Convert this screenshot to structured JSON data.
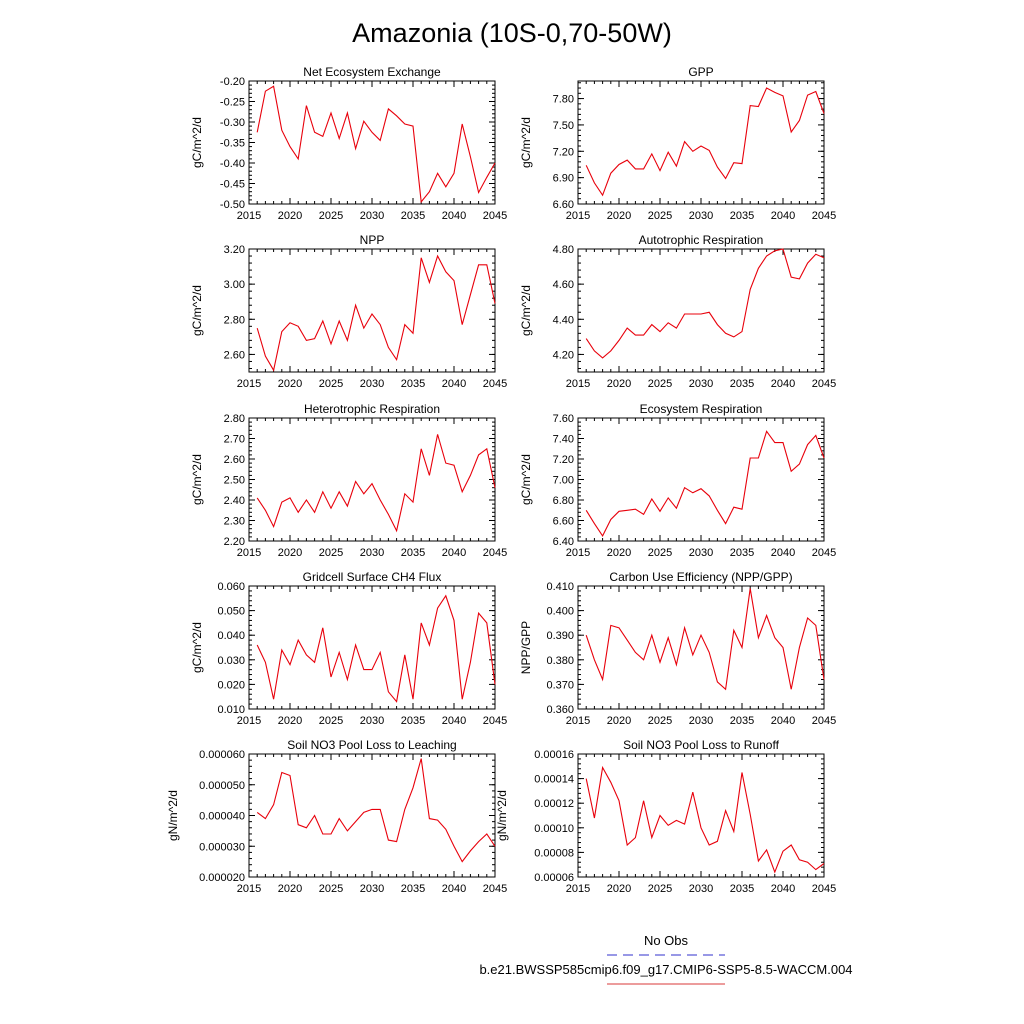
{
  "title": "Amazonia (10S-0,70-50W)",
  "legend": {
    "entries": [
      {
        "label": "No Obs",
        "color": "#5b5bd6",
        "style": "dashed"
      },
      {
        "label": "b.e21.BWSSP585cmip6.f09_g17.CMIP6-SSP5-8.5-WACCM.004",
        "color": "#e06060",
        "style": "solid"
      }
    ]
  },
  "line_color": "#e8000b",
  "chart_data": [
    {
      "type": "line",
      "title": "Net Ecosystem Exchange",
      "ylabel": "gC/m^2/d",
      "xlim": [
        2015,
        2045
      ],
      "ylim": [
        -0.5,
        -0.2
      ],
      "xticks": [
        "2015",
        "2020",
        "2025",
        "2030",
        "2035",
        "2040",
        "2045"
      ],
      "yticks": [
        "-0.50",
        "-0.45",
        "-0.40",
        "-0.35",
        "-0.30",
        "-0.25",
        "-0.20"
      ],
      "x": [
        2016,
        2017,
        2018,
        2019,
        2020,
        2021,
        2022,
        2023,
        2024,
        2025,
        2026,
        2027,
        2028,
        2029,
        2030,
        2031,
        2032,
        2033,
        2034,
        2035,
        2036,
        2037,
        2038,
        2039,
        2040,
        2041,
        2042,
        2043,
        2044,
        2045
      ],
      "values": [
        -0.325,
        -0.225,
        -0.213,
        -0.32,
        -0.36,
        -0.39,
        -0.26,
        -0.325,
        -0.335,
        -0.278,
        -0.34,
        -0.278,
        -0.365,
        -0.298,
        -0.325,
        -0.345,
        -0.268,
        -0.285,
        -0.305,
        -0.31,
        -0.495,
        -0.47,
        -0.425,
        -0.458,
        -0.425,
        -0.305,
        -0.385,
        -0.472,
        -0.435,
        -0.4
      ]
    },
    {
      "type": "line",
      "title": "GPP",
      "ylabel": "gC/m^2/d",
      "xlim": [
        2015,
        2045
      ],
      "ylim": [
        6.6,
        8.0
      ],
      "xticks": [
        "2015",
        "2020",
        "2025",
        "2030",
        "2035",
        "2040",
        "2045"
      ],
      "yticks": [
        "6.60",
        "6.90",
        "7.20",
        "7.50",
        "7.80"
      ],
      "x": [
        2016,
        2017,
        2018,
        2019,
        2020,
        2021,
        2022,
        2023,
        2024,
        2025,
        2026,
        2027,
        2028,
        2029,
        2030,
        2031,
        2032,
        2033,
        2034,
        2035,
        2036,
        2037,
        2038,
        2039,
        2040,
        2041,
        2042,
        2043,
        2044,
        2045
      ],
      "values": [
        7.04,
        6.84,
        6.7,
        6.95,
        7.05,
        7.1,
        7.0,
        7.0,
        7.17,
        6.98,
        7.19,
        7.03,
        7.31,
        7.2,
        7.26,
        7.21,
        7.02,
        6.89,
        7.07,
        7.06,
        7.72,
        7.71,
        7.92,
        7.87,
        7.83,
        7.42,
        7.55,
        7.84,
        7.88,
        7.63
      ]
    },
    {
      "type": "line",
      "title": "NPP",
      "ylabel": "gC/m^2/d",
      "xlim": [
        2015,
        2045
      ],
      "ylim": [
        2.5,
        3.2
      ],
      "xticks": [
        "2015",
        "2020",
        "2025",
        "2030",
        "2035",
        "2040",
        "2045"
      ],
      "yticks": [
        "2.60",
        "2.80",
        "3.00",
        "3.20"
      ],
      "x": [
        2016,
        2017,
        2018,
        2019,
        2020,
        2021,
        2022,
        2023,
        2024,
        2025,
        2026,
        2027,
        2028,
        2029,
        2030,
        2031,
        2032,
        2033,
        2034,
        2035,
        2036,
        2037,
        2038,
        2039,
        2040,
        2041,
        2042,
        2043,
        2044,
        2045
      ],
      "values": [
        2.75,
        2.59,
        2.51,
        2.73,
        2.78,
        2.76,
        2.68,
        2.69,
        2.79,
        2.66,
        2.79,
        2.68,
        2.88,
        2.75,
        2.83,
        2.77,
        2.64,
        2.57,
        2.77,
        2.72,
        3.15,
        3.01,
        3.16,
        3.07,
        3.02,
        2.77,
        2.94,
        3.11,
        3.11,
        2.89
      ]
    },
    {
      "type": "line",
      "title": "Autotrophic Respiration",
      "ylabel": "gC/m^2/d",
      "xlim": [
        2015,
        2045
      ],
      "ylim": [
        4.1,
        4.8
      ],
      "xticks": [
        "2015",
        "2020",
        "2025",
        "2030",
        "2035",
        "2040",
        "2045"
      ],
      "yticks": [
        "4.20",
        "4.40",
        "4.60",
        "4.80"
      ],
      "x": [
        2016,
        2017,
        2018,
        2019,
        2020,
        2021,
        2022,
        2023,
        2024,
        2025,
        2026,
        2027,
        2028,
        2029,
        2030,
        2031,
        2032,
        2033,
        2034,
        2035,
        2036,
        2037,
        2038,
        2039,
        2040,
        2041,
        2042,
        2043,
        2044,
        2045
      ],
      "values": [
        4.29,
        4.22,
        4.18,
        4.22,
        4.28,
        4.35,
        4.31,
        4.31,
        4.37,
        4.33,
        4.38,
        4.35,
        4.43,
        4.43,
        4.43,
        4.44,
        4.37,
        4.32,
        4.3,
        4.33,
        4.57,
        4.69,
        4.76,
        4.79,
        4.8,
        4.64,
        4.63,
        4.72,
        4.77,
        4.75
      ]
    },
    {
      "type": "line",
      "title": "Heterotrophic Respiration",
      "ylabel": "gC/m^2/d",
      "xlim": [
        2015,
        2045
      ],
      "ylim": [
        2.2,
        2.8
      ],
      "xticks": [
        "2015",
        "2020",
        "2025",
        "2030",
        "2035",
        "2040",
        "2045"
      ],
      "yticks": [
        "2.20",
        "2.30",
        "2.40",
        "2.50",
        "2.60",
        "2.70",
        "2.80"
      ],
      "x": [
        2016,
        2017,
        2018,
        2019,
        2020,
        2021,
        2022,
        2023,
        2024,
        2025,
        2026,
        2027,
        2028,
        2029,
        2030,
        2031,
        2032,
        2033,
        2034,
        2035,
        2036,
        2037,
        2038,
        2039,
        2040,
        2041,
        2042,
        2043,
        2044,
        2045
      ],
      "values": [
        2.41,
        2.35,
        2.27,
        2.39,
        2.41,
        2.34,
        2.4,
        2.34,
        2.44,
        2.36,
        2.44,
        2.37,
        2.49,
        2.43,
        2.48,
        2.4,
        2.33,
        2.25,
        2.43,
        2.39,
        2.65,
        2.52,
        2.72,
        2.58,
        2.57,
        2.44,
        2.52,
        2.62,
        2.65,
        2.46
      ]
    },
    {
      "type": "line",
      "title": "Ecosystem Respiration",
      "ylabel": "gC/m^2/d",
      "xlim": [
        2015,
        2045
      ],
      "ylim": [
        6.4,
        7.6
      ],
      "xticks": [
        "2015",
        "2020",
        "2025",
        "2030",
        "2035",
        "2040",
        "2045"
      ],
      "yticks": [
        "6.40",
        "6.60",
        "6.80",
        "7.00",
        "7.20",
        "7.40",
        "7.60"
      ],
      "x": [
        2016,
        2017,
        2018,
        2019,
        2020,
        2021,
        2022,
        2023,
        2024,
        2025,
        2026,
        2027,
        2028,
        2029,
        2030,
        2031,
        2032,
        2033,
        2034,
        2035,
        2036,
        2037,
        2038,
        2039,
        2040,
        2041,
        2042,
        2043,
        2044,
        2045
      ],
      "values": [
        6.7,
        6.57,
        6.45,
        6.61,
        6.69,
        6.7,
        6.71,
        6.66,
        6.81,
        6.69,
        6.82,
        6.72,
        6.92,
        6.87,
        6.91,
        6.84,
        6.7,
        6.57,
        6.73,
        6.71,
        7.21,
        7.21,
        7.47,
        7.36,
        7.36,
        7.08,
        7.15,
        7.34,
        7.43,
        7.21
      ]
    },
    {
      "type": "line",
      "title": "Gridcell Surface CH4 Flux",
      "ylabel": "gC/m^2/d",
      "xlim": [
        2015,
        2045
      ],
      "ylim": [
        0.01,
        0.06
      ],
      "xticks": [
        "2015",
        "2020",
        "2025",
        "2030",
        "2035",
        "2040",
        "2045"
      ],
      "yticks": [
        "0.010",
        "0.020",
        "0.030",
        "0.040",
        "0.050",
        "0.060"
      ],
      "x": [
        2016,
        2017,
        2018,
        2019,
        2020,
        2021,
        2022,
        2023,
        2024,
        2025,
        2026,
        2027,
        2028,
        2029,
        2030,
        2031,
        2032,
        2033,
        2034,
        2035,
        2036,
        2037,
        2038,
        2039,
        2040,
        2041,
        2042,
        2043,
        2044,
        2045
      ],
      "values": [
        0.036,
        0.029,
        0.014,
        0.034,
        0.028,
        0.038,
        0.032,
        0.029,
        0.043,
        0.023,
        0.033,
        0.022,
        0.036,
        0.026,
        0.026,
        0.033,
        0.017,
        0.013,
        0.032,
        0.014,
        0.045,
        0.036,
        0.051,
        0.056,
        0.046,
        0.014,
        0.029,
        0.049,
        0.045,
        0.02
      ]
    },
    {
      "type": "line",
      "title": "Carbon Use Efficiency (NPP/GPP)",
      "ylabel": "NPP/GPP",
      "xlim": [
        2015,
        2045
      ],
      "ylim": [
        0.36,
        0.41
      ],
      "xticks": [
        "2015",
        "2020",
        "2025",
        "2030",
        "2035",
        "2040",
        "2045"
      ],
      "yticks": [
        "0.360",
        "0.370",
        "0.380",
        "0.390",
        "0.400",
        "0.410"
      ],
      "x": [
        2016,
        2017,
        2018,
        2019,
        2020,
        2021,
        2022,
        2023,
        2024,
        2025,
        2026,
        2027,
        2028,
        2029,
        2030,
        2031,
        2032,
        2033,
        2034,
        2035,
        2036,
        2037,
        2038,
        2039,
        2040,
        2041,
        2042,
        2043,
        2044,
        2045
      ],
      "values": [
        0.39,
        0.38,
        0.372,
        0.394,
        0.393,
        0.388,
        0.383,
        0.38,
        0.39,
        0.379,
        0.389,
        0.378,
        0.393,
        0.382,
        0.39,
        0.383,
        0.371,
        0.368,
        0.392,
        0.385,
        0.409,
        0.389,
        0.398,
        0.389,
        0.385,
        0.368,
        0.385,
        0.397,
        0.394,
        0.372
      ]
    },
    {
      "type": "line",
      "title": "Soil NO3 Pool Loss to Leaching",
      "ylabel": "gN/m^2/d",
      "xlim": [
        2015,
        2045
      ],
      "ylim": [
        2e-05,
        6e-05
      ],
      "xticks": [
        "2015",
        "2020",
        "2025",
        "2030",
        "2035",
        "2040",
        "2045"
      ],
      "yticks": [
        "0.000020",
        "0.000030",
        "0.000040",
        "0.000050",
        "0.000060"
      ],
      "x": [
        2016,
        2017,
        2018,
        2019,
        2020,
        2021,
        2022,
        2023,
        2024,
        2025,
        2026,
        2027,
        2028,
        2029,
        2030,
        2031,
        2032,
        2033,
        2034,
        2035,
        2036,
        2037,
        2038,
        2039,
        2040,
        2041,
        2042,
        2043,
        2044,
        2045
      ],
      "values": [
        4.1e-05,
        3.9e-05,
        4.35e-05,
        5.4e-05,
        5.3e-05,
        3.7e-05,
        3.6e-05,
        4e-05,
        3.4e-05,
        3.4e-05,
        3.9e-05,
        3.5e-05,
        3.8e-05,
        4.1e-05,
        4.2e-05,
        4.2e-05,
        3.2e-05,
        3.15e-05,
        4.2e-05,
        4.9e-05,
        5.85e-05,
        3.9e-05,
        3.85e-05,
        3.55e-05,
        3e-05,
        2.5e-05,
        2.85e-05,
        3.15e-05,
        3.4e-05,
        3e-05
      ]
    },
    {
      "type": "line",
      "title": "Soil NO3 Pool Loss to Runoff",
      "ylabel": "gN/m^2/d",
      "xlim": [
        2015,
        2045
      ],
      "ylim": [
        6e-05,
        0.00016
      ],
      "xticks": [
        "2015",
        "2020",
        "2025",
        "2030",
        "2035",
        "2040",
        "2045"
      ],
      "yticks": [
        "0.00006",
        "0.00008",
        "0.00010",
        "0.00012",
        "0.00014",
        "0.00016"
      ],
      "x": [
        2016,
        2017,
        2018,
        2019,
        2020,
        2021,
        2022,
        2023,
        2024,
        2025,
        2026,
        2027,
        2028,
        2029,
        2030,
        2031,
        2032,
        2033,
        2034,
        2035,
        2036,
        2037,
        2038,
        2039,
        2040,
        2041,
        2042,
        2043,
        2044,
        2045
      ],
      "values": [
        0.00014,
        0.000108,
        0.000149,
        0.000137,
        0.000122,
        8.6e-05,
        9.2e-05,
        0.000122,
        9.2e-05,
        0.00011,
        0.000102,
        0.000106,
        0.000103,
        0.000129,
        0.0001,
        8.6e-05,
        8.9e-05,
        0.000114,
        9.7e-05,
        0.000145,
        0.000111,
        7.3e-05,
        8.2e-05,
        6.4e-05,
        8.1e-05,
        8.6e-05,
        7.4e-05,
        7.2e-05,
        6.6e-05,
        7.1e-05
      ]
    }
  ]
}
